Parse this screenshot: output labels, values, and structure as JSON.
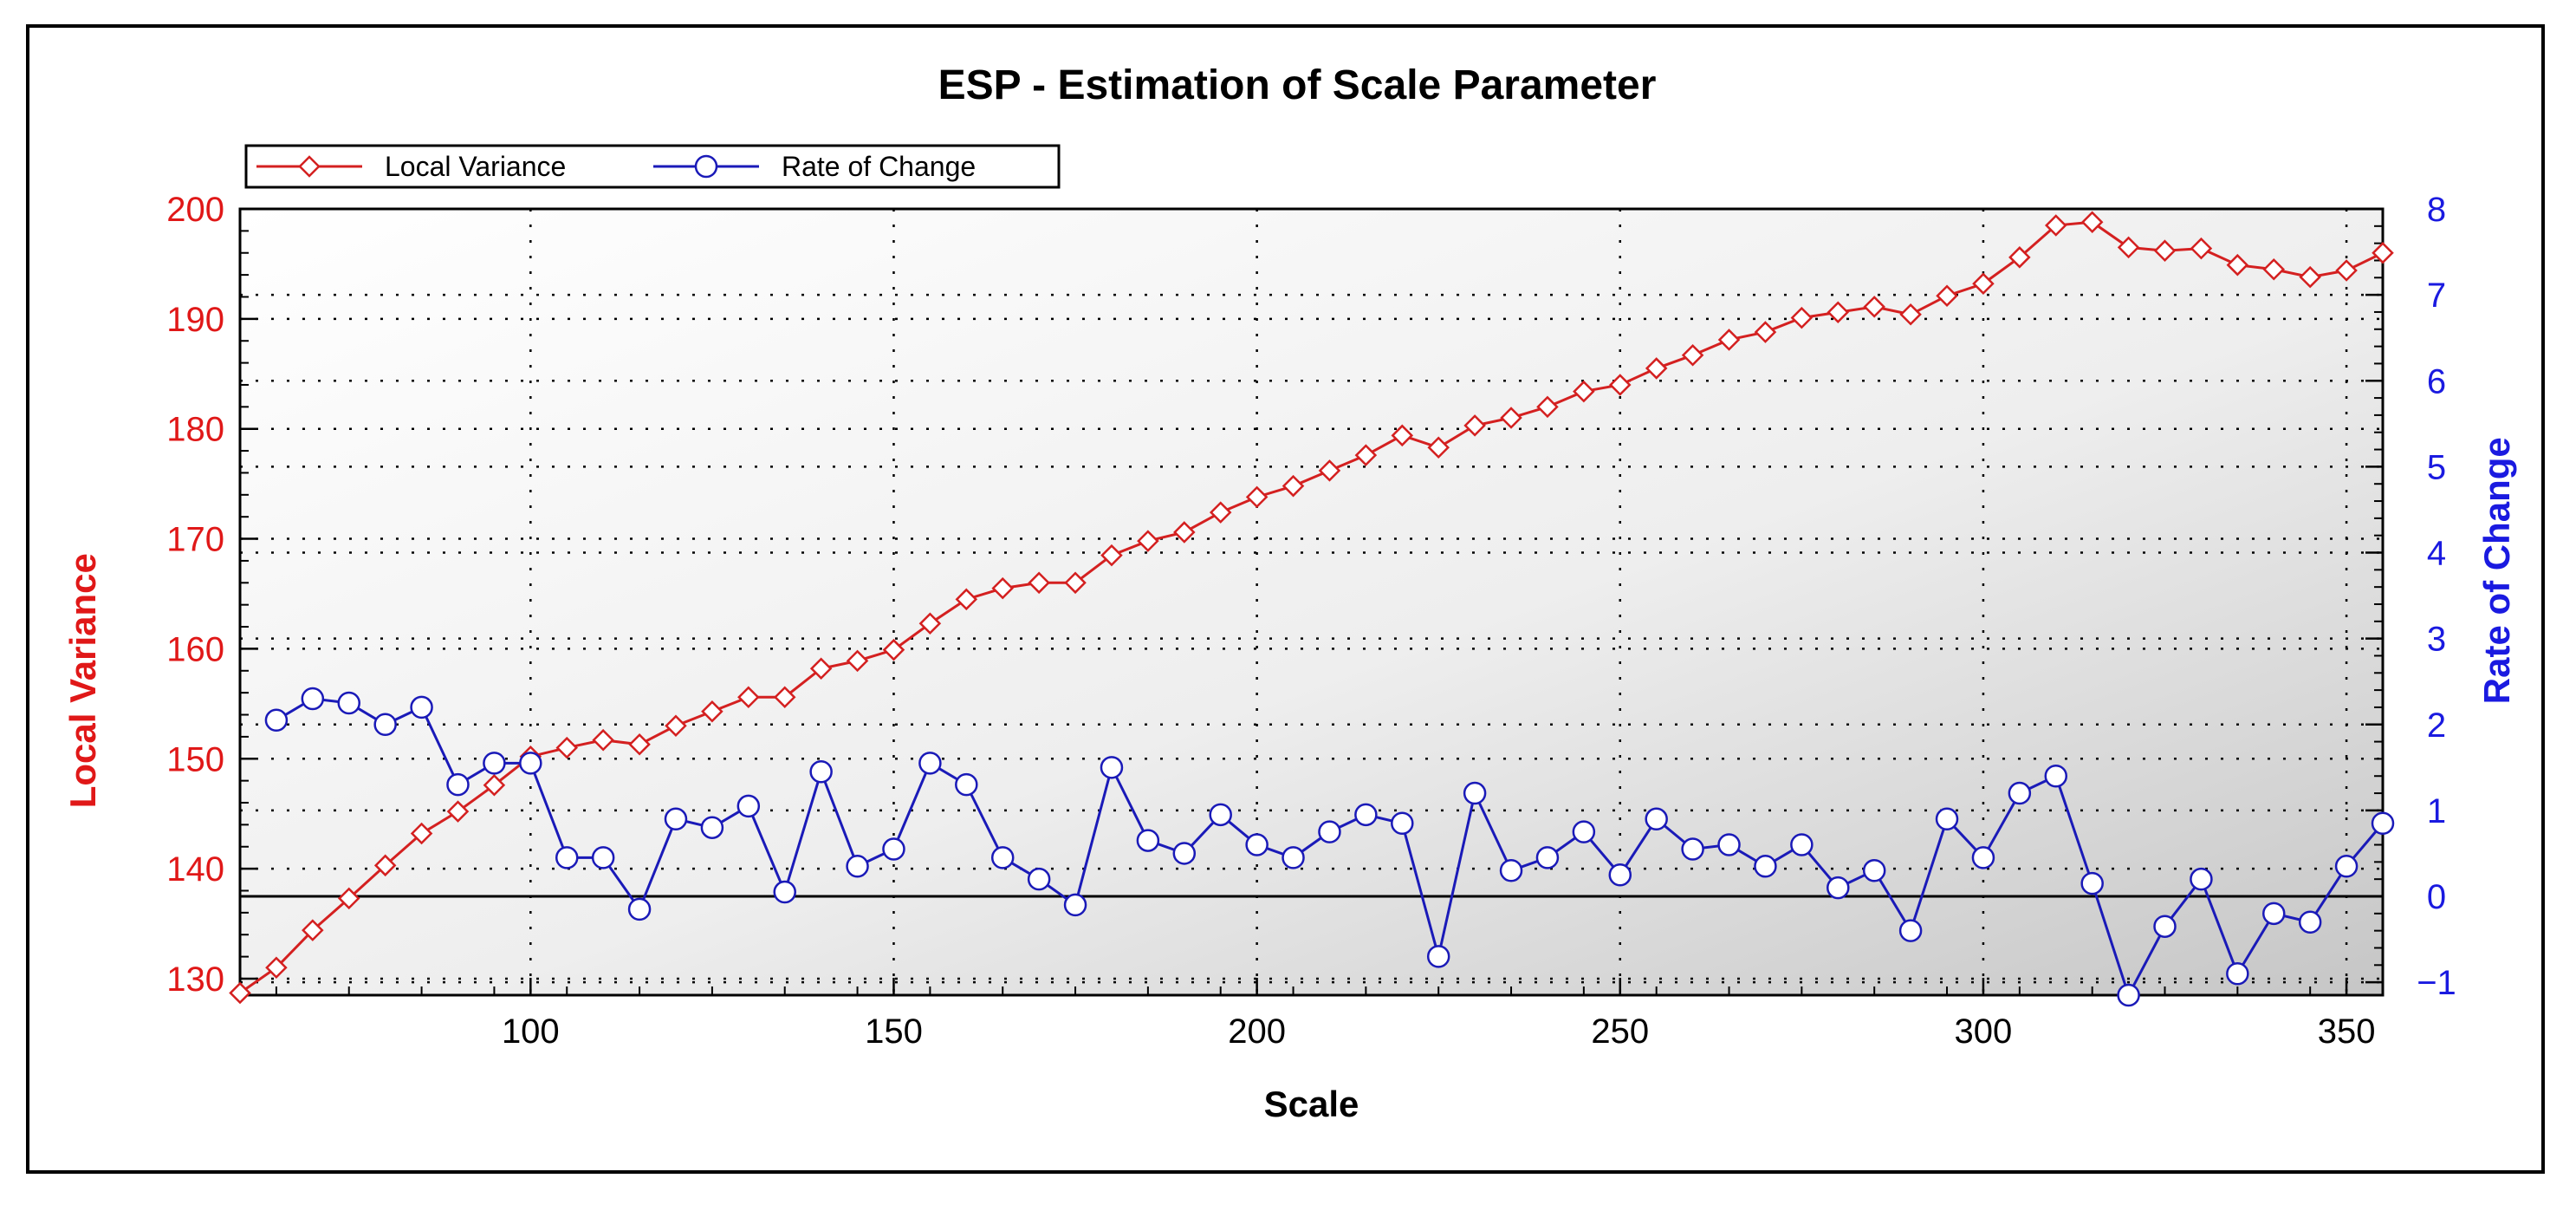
{
  "chart_data": {
    "type": "line",
    "title": "ESP - Estimation of Scale Parameter",
    "xlabel": "Scale",
    "ylabel_left": "Local Variance",
    "ylabel_right": "Rate of Change",
    "xlim": [
      60,
      355
    ],
    "ylim_left": [
      128.5,
      200
    ],
    "ylim_right": [
      -1.15,
      8
    ],
    "xticks": [
      100,
      150,
      200,
      250,
      300,
      350
    ],
    "yticks_left": [
      130,
      140,
      150,
      160,
      170,
      180,
      190,
      200
    ],
    "yticks_right": [
      -1,
      0,
      1,
      2,
      3,
      4,
      5,
      6,
      7,
      8
    ],
    "grid": true,
    "legend": "top-left",
    "colors": {
      "local_variance": "#d42020",
      "rate_of_change": "#1a1ab8",
      "axis_left": "#e01818",
      "axis_right": "#1a1ae0"
    },
    "x": [
      60,
      65,
      70,
      75,
      80,
      85,
      90,
      95,
      100,
      105,
      110,
      115,
      120,
      125,
      130,
      135,
      140,
      145,
      150,
      155,
      160,
      165,
      170,
      175,
      180,
      185,
      190,
      195,
      200,
      205,
      210,
      215,
      220,
      225,
      230,
      235,
      240,
      245,
      250,
      255,
      260,
      265,
      270,
      275,
      280,
      285,
      290,
      295,
      300,
      305,
      310,
      315,
      320,
      325,
      330,
      335,
      340,
      345,
      350,
      355
    ],
    "series": [
      {
        "name": "Local Variance",
        "axis": "left",
        "values": [
          128.7,
          131.0,
          134.4,
          137.3,
          140.3,
          143.2,
          145.2,
          147.6,
          150.2,
          151.0,
          151.7,
          151.3,
          153.0,
          154.3,
          155.6,
          155.6,
          158.2,
          158.9,
          159.9,
          162.3,
          164.5,
          165.5,
          166.0,
          166.0,
          168.5,
          169.8,
          170.6,
          172.4,
          173.8,
          174.8,
          176.2,
          177.6,
          179.4,
          178.3,
          180.3,
          181.0,
          182.0,
          183.4,
          184.0,
          185.5,
          186.7,
          188.1,
          188.8,
          190.1,
          190.6,
          191.1,
          190.4,
          192.1,
          193.2,
          195.6,
          198.5,
          198.8,
          196.5,
          196.2,
          196.4,
          194.9,
          194.5,
          193.8,
          194.4,
          196.0
        ]
      },
      {
        "name": "Rate of Change",
        "axis": "right",
        "values": [
          null,
          2.05,
          2.3,
          2.25,
          2.0,
          2.2,
          1.3,
          1.55,
          1.55,
          0.45,
          0.45,
          -0.15,
          0.9,
          0.8,
          1.05,
          0.05,
          1.45,
          0.35,
          0.55,
          1.55,
          1.3,
          0.45,
          0.2,
          -0.1,
          1.5,
          0.65,
          0.5,
          0.95,
          0.6,
          0.45,
          0.75,
          0.95,
          0.85,
          -0.7,
          1.2,
          0.3,
          0.45,
          0.75,
          0.25,
          0.9,
          0.55,
          0.6,
          0.35,
          0.6,
          0.1,
          0.3,
          -0.4,
          0.9,
          0.45,
          1.2,
          1.4,
          0.15,
          -1.15,
          -0.35,
          0.2,
          -0.9,
          -0.2,
          -0.3,
          0.35,
          0.85
        ]
      }
    ]
  }
}
